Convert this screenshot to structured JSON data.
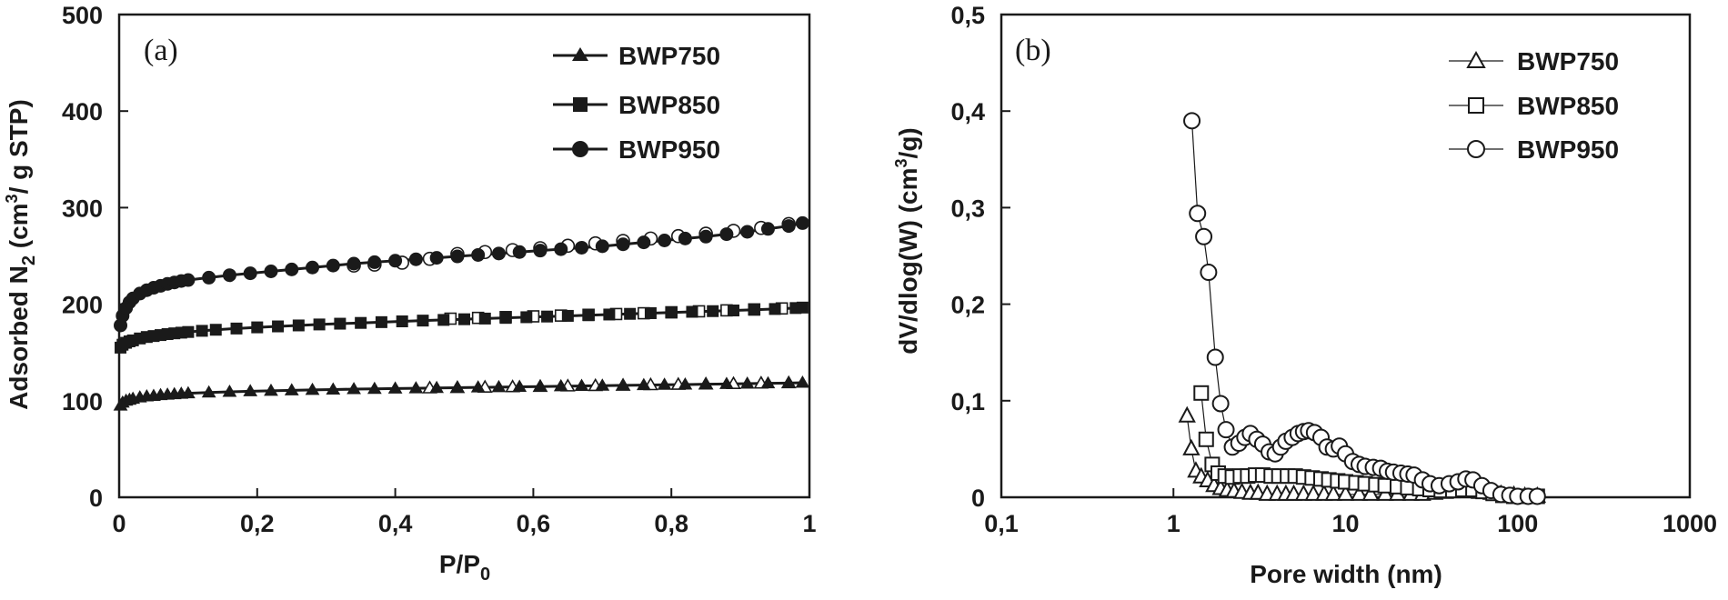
{
  "chart_data": [
    {
      "type": "line",
      "panel_label": "(a)",
      "xlabel_main": "P/P",
      "xlabel_sub": "0",
      "ylabel_part1": "Adsorbed N",
      "ylabel_sub": "2",
      "ylabel_part2": " (cm",
      "ylabel_sup": "3",
      "ylabel_part3": "/ g STP)",
      "xlim": [
        0,
        1
      ],
      "ylim": [
        0,
        500
      ],
      "x_ticks": [
        "0",
        "0,2",
        "0,4",
        "0,6",
        "0,8",
        "1"
      ],
      "y_ticks": [
        "0",
        "100",
        "200",
        "300",
        "400",
        "500"
      ],
      "grid": false,
      "legend_position": "top-right",
      "series": [
        {
          "name": "BWP750",
          "marker": "triangle",
          "adsorption": {
            "x": [
              0.002,
              0.005,
              0.01,
              0.015,
              0.02,
              0.03,
              0.04,
              0.05,
              0.06,
              0.07,
              0.08,
              0.09,
              0.1,
              0.13,
              0.16,
              0.19,
              0.22,
              0.25,
              0.28,
              0.31,
              0.34,
              0.37,
              0.4,
              0.43,
              0.46,
              0.49,
              0.52,
              0.55,
              0.58,
              0.61,
              0.64,
              0.67,
              0.7,
              0.73,
              0.76,
              0.79,
              0.82,
              0.85,
              0.88,
              0.91,
              0.94,
              0.97,
              0.99
            ],
            "y": [
              95,
              98,
              100,
              101,
              102,
              103.5,
              104.5,
              105,
              105.8,
              106.3,
              106.8,
              107.2,
              107.7,
              108.5,
              109.2,
              109.8,
              110.3,
              110.8,
              111.2,
              111.6,
              112,
              112.3,
              112.6,
              112.9,
              113.2,
              113.5,
              113.8,
              114.1,
              114.4,
              114.7,
              115,
              115.3,
              115.6,
              115.9,
              116.2,
              116.5,
              116.8,
              117.1,
              117.4,
              117.7,
              118,
              118.3,
              118.6
            ]
          },
          "desorption": {
            "x": [
              0.97,
              0.93,
              0.89,
              0.85,
              0.81,
              0.77,
              0.73,
              0.69,
              0.65,
              0.61,
              0.57,
              0.53,
              0.49,
              0.45
            ],
            "y": [
              118.3,
              118,
              117.5,
              117.1,
              116.7,
              116.3,
              115.8,
              115.4,
              115,
              114.6,
              114.2,
              113.8,
              113.4,
              113
            ]
          }
        },
        {
          "name": "BWP850",
          "marker": "square",
          "adsorption": {
            "x": [
              0.002,
              0.005,
              0.01,
              0.015,
              0.02,
              0.03,
              0.04,
              0.05,
              0.06,
              0.07,
              0.08,
              0.09,
              0.1,
              0.12,
              0.14,
              0.17,
              0.2,
              0.23,
              0.26,
              0.29,
              0.32,
              0.35,
              0.38,
              0.41,
              0.44,
              0.47,
              0.5,
              0.53,
              0.56,
              0.59,
              0.62,
              0.65,
              0.68,
              0.71,
              0.74,
              0.77,
              0.8,
              0.83,
              0.86,
              0.89,
              0.92,
              0.95,
              0.98,
              0.99
            ],
            "y": [
              155,
              158,
              160,
              161.5,
              162.5,
              164.5,
              166,
              167,
              168,
              169,
              169.8,
              170.5,
              171.2,
              172.4,
              173.5,
              174.8,
              176,
              177,
              178,
              179,
              179.8,
              180.6,
              181.4,
              182.2,
              183,
              183.7,
              184.4,
              185.1,
              185.8,
              186.5,
              187.2,
              187.9,
              188.6,
              189.3,
              190,
              190.7,
              191.4,
              192.1,
              192.8,
              193.5,
              194.2,
              195,
              196,
              196.5
            ]
          },
          "desorption": {
            "x": [
              0.96,
              0.92,
              0.88,
              0.84,
              0.8,
              0.76,
              0.72,
              0.68,
              0.64,
              0.6,
              0.56,
              0.52,
              0.48
            ],
            "y": [
              195.6,
              194.6,
              193.6,
              192.6,
              191.6,
              190.6,
              189.8,
              189,
              188.2,
              187.4,
              186.6,
              185.8,
              185
            ]
          }
        },
        {
          "name": "BWP950",
          "marker": "circle",
          "adsorption": {
            "x": [
              0.002,
              0.005,
              0.01,
              0.015,
              0.02,
              0.03,
              0.04,
              0.05,
              0.06,
              0.07,
              0.08,
              0.09,
              0.1,
              0.13,
              0.16,
              0.19,
              0.22,
              0.25,
              0.28,
              0.31,
              0.34,
              0.37,
              0.4,
              0.43,
              0.46,
              0.49,
              0.52,
              0.55,
              0.58,
              0.61,
              0.64,
              0.67,
              0.7,
              0.73,
              0.76,
              0.79,
              0.82,
              0.85,
              0.88,
              0.91,
              0.94,
              0.97,
              0.99
            ],
            "y": [
              178,
              188,
              196,
              202,
              206,
              211,
              214.5,
              217,
              219,
              221,
              222.5,
              224,
              225,
              227.5,
              230,
              232,
              234,
              236,
              238,
              240,
              242,
              243.5,
              245,
              246.5,
              248,
              249.5,
              251,
              252.5,
              254,
              255.5,
              257,
              258.5,
              260,
              262,
              264,
              266,
              268,
              270,
              272.5,
              275,
              278,
              281,
              284
            ]
          },
          "desorption": {
            "x": [
              0.97,
              0.93,
              0.89,
              0.85,
              0.81,
              0.77,
              0.73,
              0.69,
              0.65,
              0.61,
              0.57,
              0.53,
              0.49,
              0.45,
              0.41,
              0.37,
              0.34
            ],
            "y": [
              283,
              279,
              276,
              273,
              270.5,
              268,
              265.5,
              263,
              260.5,
              258,
              256,
              254,
              252,
              247,
              243,
              241,
              240
            ]
          }
        }
      ]
    },
    {
      "type": "scatter",
      "panel_label": "(b)",
      "xlabel": "Pore width (nm)",
      "ylabel_part1": "dV/dlog(W)  (cm",
      "ylabel_sup": "3",
      "ylabel_part2": "/g)",
      "x_scale": "log",
      "xlim": [
        0.1,
        1000
      ],
      "ylim": [
        0,
        0.5
      ],
      "x_ticks": [
        "0,1",
        "1",
        "10",
        "100",
        "1000"
      ],
      "x_tick_values": [
        0.1,
        1,
        10,
        100,
        1000
      ],
      "y_ticks": [
        "0",
        "0,1",
        "0,2",
        "0,3",
        "0,4",
        "0,5"
      ],
      "grid": false,
      "legend_position": "top-right",
      "series": [
        {
          "name": "BWP750",
          "marker": "triangle-open",
          "x": [
            1.2,
            1.27,
            1.35,
            1.45,
            1.58,
            1.72,
            1.88,
            2.05,
            2.25,
            2.5,
            2.8,
            3.1,
            3.5,
            4,
            4.5,
            5,
            5.7,
            6.5,
            7.5,
            8.5,
            10,
            12,
            14,
            17,
            20,
            24,
            28,
            33,
            38,
            45,
            52,
            60,
            70,
            80,
            95,
            110,
            130
          ],
          "y": [
            0.084,
            0.05,
            0.027,
            0.021,
            0.017,
            0.012,
            0.009,
            0.007,
            0.006,
            0.005,
            0.004,
            0.004,
            0.003,
            0.003,
            0.003,
            0.003,
            0.003,
            0.003,
            0.003,
            0.003,
            0.003,
            0.003,
            0.003,
            0.003,
            0.003,
            0.003,
            0.003,
            0.004,
            0.005,
            0.006,
            0.006,
            0.005,
            0.004,
            0.003,
            0.002,
            0.001,
            0.001
          ]
        },
        {
          "name": "BWP850",
          "marker": "square-open",
          "x": [
            1.45,
            1.55,
            1.68,
            1.82,
            2,
            2.2,
            2.45,
            2.7,
            3,
            3.3,
            3.7,
            4.1,
            4.6,
            5.1,
            5.7,
            6.4,
            7.2,
            8,
            9,
            10,
            11.5,
            13,
            15,
            17,
            20,
            23,
            27,
            31,
            36,
            42,
            48,
            55,
            63,
            72,
            82,
            95,
            110,
            130
          ],
          "y": [
            0.108,
            0.06,
            0.034,
            0.025,
            0.022,
            0.021,
            0.022,
            0.022,
            0.023,
            0.023,
            0.022,
            0.022,
            0.022,
            0.022,
            0.021,
            0.02,
            0.019,
            0.018,
            0.017,
            0.016,
            0.015,
            0.014,
            0.013,
            0.012,
            0.011,
            0.01,
            0.009,
            0.008,
            0.007,
            0.007,
            0.008,
            0.008,
            0.006,
            0.004,
            0.002,
            0.001,
            0.001,
            0.001
          ]
        },
        {
          "name": "BWP950",
          "marker": "circle-open",
          "x": [
            1.28,
            1.38,
            1.5,
            1.6,
            1.75,
            1.88,
            2.02,
            2.2,
            2.4,
            2.6,
            2.8,
            3.05,
            3.3,
            3.6,
            3.9,
            4.2,
            4.5,
            4.9,
            5.3,
            5.7,
            6.1,
            6.6,
            7.2,
            7.8,
            8.5,
            9.2,
            10,
            11,
            12,
            13,
            14.5,
            16,
            17.5,
            19,
            21,
            23,
            25,
            28,
            31,
            35,
            40,
            45,
            50,
            55,
            62,
            70,
            80,
            90,
            100,
            115,
            130
          ],
          "y": [
            0.39,
            0.294,
            0.27,
            0.233,
            0.145,
            0.097,
            0.07,
            0.052,
            0.056,
            0.062,
            0.066,
            0.06,
            0.055,
            0.047,
            0.045,
            0.052,
            0.058,
            0.062,
            0.066,
            0.068,
            0.069,
            0.067,
            0.062,
            0.052,
            0.05,
            0.053,
            0.045,
            0.037,
            0.034,
            0.032,
            0.031,
            0.03,
            0.027,
            0.026,
            0.025,
            0.024,
            0.023,
            0.018,
            0.014,
            0.012,
            0.014,
            0.016,
            0.019,
            0.018,
            0.012,
            0.007,
            0.003,
            0.002,
            0.001,
            0.001,
            0.001
          ]
        }
      ]
    }
  ]
}
